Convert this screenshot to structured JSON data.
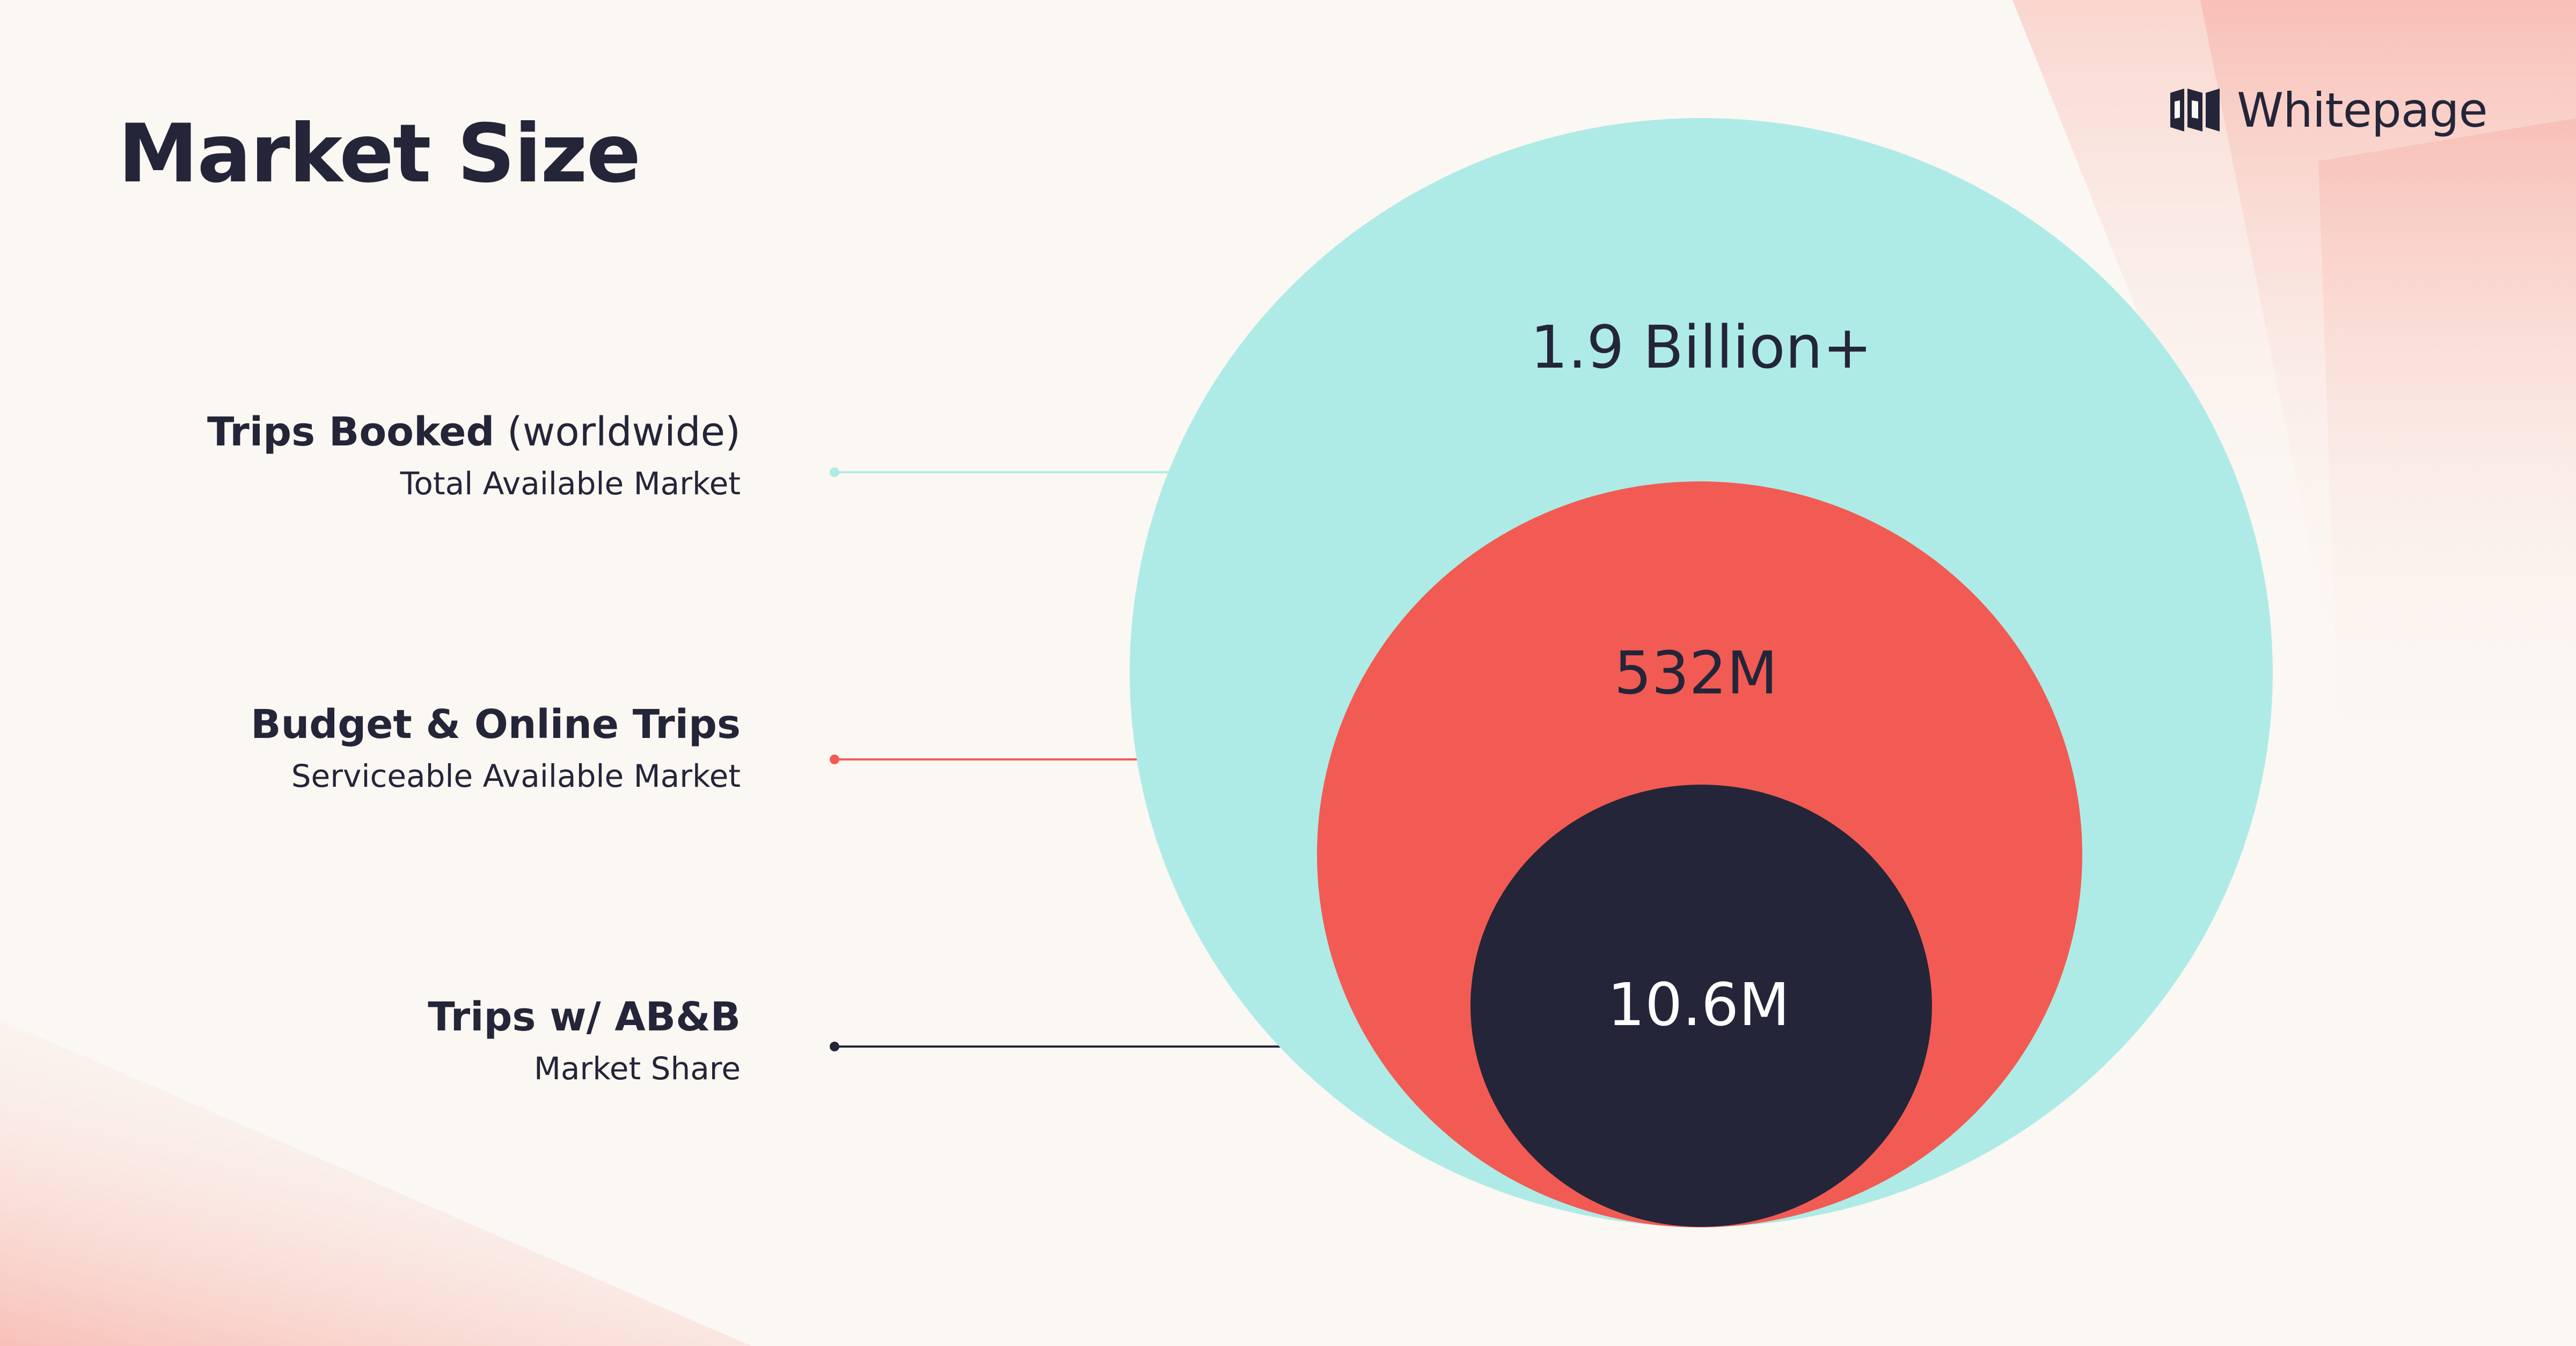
{
  "title": "Market Size",
  "logo": {
    "text": "Whitepage"
  },
  "segments": [
    {
      "label_bold": "Trips Booked",
      "label_paren": "(worldwide)",
      "sublabel": "Total Available Market",
      "value": "1.9 Billion+",
      "color": "#AEEBE6",
      "text_color": "#252539"
    },
    {
      "label_bold": "Budget & Online Trips",
      "label_paren": "",
      "sublabel": "Serviceable Available Market",
      "value": "532M",
      "color": "#F25B53",
      "text_color": "#252539"
    },
    {
      "label_bold": "Trips w/ AB&B",
      "label_paren": "",
      "sublabel": "Market Share",
      "value": "10.6M",
      "color": "#252539",
      "text_color": "#FFFFFF"
    }
  ]
}
